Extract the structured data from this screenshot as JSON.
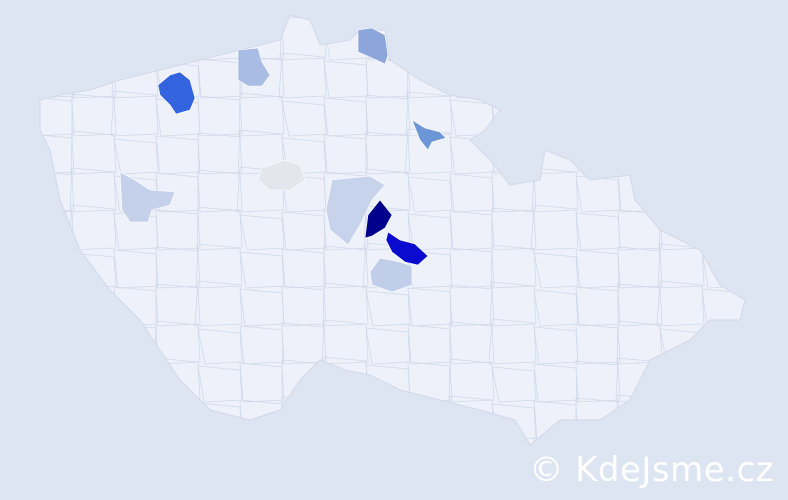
{
  "map": {
    "country_fill": "#eef1f9",
    "border_color": "#d0d8ea",
    "background": "#dde5f2",
    "highlighted_regions": [
      {
        "color": "#00008b"
      },
      {
        "color": "#0b0bd0"
      },
      {
        "color": "#3463e0"
      },
      {
        "color": "#6c96d5"
      },
      {
        "color": "#8ca6dc"
      },
      {
        "color": "#a9bce4"
      },
      {
        "color": "#c5d1ea"
      },
      {
        "color": "#c7d3eb"
      },
      {
        "color": "#c1cee9"
      },
      {
        "color": "#e4e6ee"
      }
    ]
  },
  "watermark": {
    "text": "© KdeJsme.cz"
  }
}
